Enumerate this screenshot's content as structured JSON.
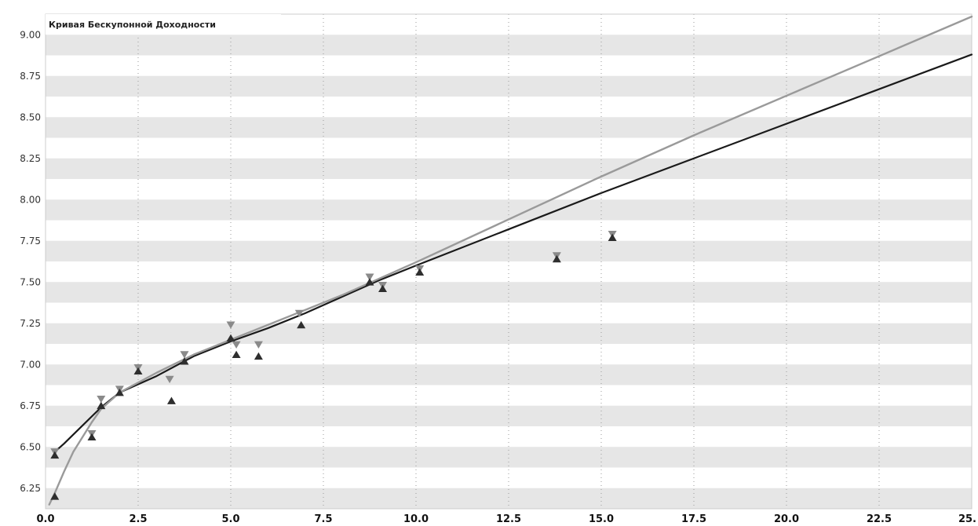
{
  "chart_data": {
    "type": "scatter",
    "title": "Кривая Бескупонной Доходности",
    "xlabel": "",
    "ylabel": "",
    "xlim": [
      0,
      25
    ],
    "ylim": [
      6.125,
      9.125
    ],
    "x_ticks": [
      "0.0",
      "2.5",
      "5.0",
      "7.5",
      "10.0",
      "12.5",
      "15.0",
      "17.5",
      "20.0",
      "22.5",
      "25."
    ],
    "y_ticks": [
      "6.25",
      "6.50",
      "6.75",
      "7.00",
      "7.25",
      "7.50",
      "7.75",
      "8.00",
      "8.25",
      "8.50",
      "8.75",
      "9.00"
    ],
    "grid": "horizontal stripes, vertical dotted lines",
    "legend": "none",
    "colors": {
      "stripe": "#e6e6e6",
      "curve_dark": "#1a1a1a",
      "curve_light": "#9a9a9a",
      "marker_down": "#8a8a8a",
      "marker_up": "#2e2e2e"
    },
    "series": [
      {
        "type": "line",
        "style": "dark",
        "x": [
          0.25,
          0.5,
          1,
          1.5,
          2,
          3,
          4,
          5,
          6,
          7,
          8,
          9,
          10,
          12.5,
          15,
          17.5,
          20,
          22.5,
          25
        ],
        "y": [
          6.47,
          6.52,
          6.63,
          6.74,
          6.83,
          6.93,
          7.05,
          7.14,
          7.22,
          7.31,
          7.41,
          7.51,
          7.6,
          7.82,
          8.04,
          8.25,
          8.46,
          8.67,
          8.88
        ]
      },
      {
        "type": "line",
        "style": "light",
        "x": [
          0.1,
          0.25,
          0.5,
          0.75,
          1,
          1.25,
          1.5,
          2,
          3,
          4,
          5,
          6,
          7,
          8,
          9,
          10,
          12.5,
          15,
          17.5,
          20,
          22.5,
          25
        ],
        "y": [
          6.15,
          6.22,
          6.35,
          6.47,
          6.56,
          6.65,
          6.73,
          6.83,
          6.95,
          7.06,
          7.15,
          7.24,
          7.33,
          7.42,
          7.52,
          7.62,
          7.88,
          8.14,
          8.39,
          8.63,
          8.87,
          9.11
        ]
      },
      {
        "type": "scatter",
        "marker": "triangle-down",
        "x": [
          0.25,
          1.25,
          1.5,
          2.0,
          2.5,
          3.35,
          3.75,
          5.0,
          5.15,
          5.75,
          6.85,
          8.75,
          9.1,
          10.1,
          13.8,
          15.3
        ],
        "y": [
          6.47,
          6.58,
          6.79,
          6.85,
          6.98,
          6.91,
          7.06,
          7.24,
          7.12,
          7.12,
          7.31,
          7.53,
          7.48,
          7.58,
          7.66,
          7.79
        ]
      },
      {
        "type": "scatter",
        "marker": "triangle-up",
        "x": [
          0.25,
          0.25,
          1.25,
          1.5,
          2.0,
          2.5,
          3.4,
          3.75,
          5.0,
          5.15,
          5.75,
          6.9,
          8.75,
          9.1,
          10.1,
          13.8,
          15.3
        ],
        "y": [
          6.45,
          6.2,
          6.56,
          6.75,
          6.83,
          6.96,
          6.78,
          7.02,
          7.16,
          7.06,
          7.05,
          7.24,
          7.5,
          7.46,
          7.56,
          7.64,
          7.77
        ]
      }
    ]
  }
}
